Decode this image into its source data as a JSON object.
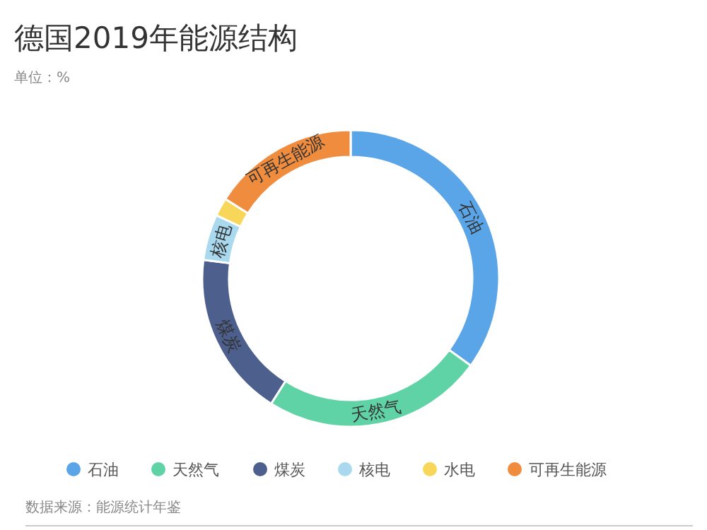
{
  "chart_data": {
    "type": "donut",
    "title": "德国2019年能源结构",
    "subtitle": "单位：%",
    "categories": [
      "石油",
      "天然气",
      "煤炭",
      "核电",
      "水电",
      "可再生能源"
    ],
    "values": [
      35,
      24,
      18,
      5,
      2,
      16
    ],
    "colors": [
      "#5aa5e8",
      "#5fd3a6",
      "#4d5f8c",
      "#a9d9ef",
      "#f7d65a",
      "#f08c3e"
    ],
    "legend": "bottom",
    "annotations": [
      "数据来源：能源统计年鉴"
    ]
  }
}
